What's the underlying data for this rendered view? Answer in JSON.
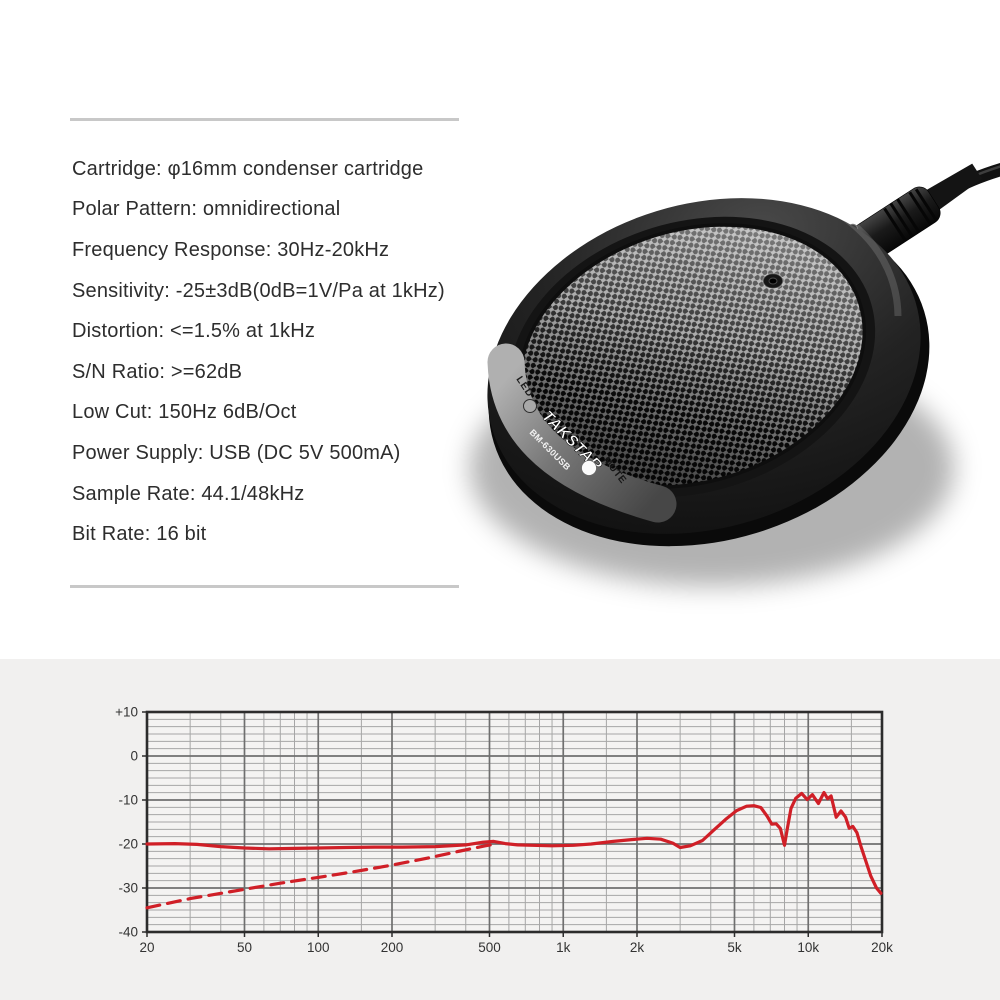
{
  "page": {
    "bg": "#ffffff",
    "section_bg": "#f1f0ef",
    "divider_color": "#c8c8c8"
  },
  "specs": {
    "items": [
      "Cartridge: φ16mm condenser cartridge",
      "Polar Pattern: omnidirectional",
      "Frequency Response: 30Hz-20kHz",
      "Sensitivity: -25±3dB(0dB=1V/Pa at 1kHz)",
      "Distortion: <=1.5% at 1kHz",
      "S/N Ratio: >=62dB",
      "Low Cut: 150Hz 6dB/Oct",
      "Power Supply: USB (DC 5V 500mA)",
      "Sample Rate: 44.1/48kHz",
      "Bit Rate: 16 bit"
    ]
  },
  "microphone": {
    "brand": "TAKSTAR",
    "model": "BM-630USB",
    "led_label": "LED",
    "mute_label": "MUTE"
  },
  "chart_data": {
    "type": "line",
    "title": "",
    "xlabel": "",
    "ylabel": "",
    "x_scale": "log",
    "xlim": [
      20,
      20000
    ],
    "ylim": [
      -40,
      10
    ],
    "grid": true,
    "legend": "none",
    "line_color": "#d01f27",
    "grid_minor_color": "#a6a6a6",
    "grid_major_color": "#6f6f6f",
    "border_color": "#2c2c2c",
    "x_major_ticks": [
      {
        "f": 20,
        "label": "20"
      },
      {
        "f": 50,
        "label": "50"
      },
      {
        "f": 100,
        "label": "100"
      },
      {
        "f": 200,
        "label": "200"
      },
      {
        "f": 500,
        "label": "500"
      },
      {
        "f": 1000,
        "label": "1k"
      },
      {
        "f": 2000,
        "label": "2k"
      },
      {
        "f": 5000,
        "label": "5k"
      },
      {
        "f": 10000,
        "label": "10k"
      },
      {
        "f": 20000,
        "label": "20k"
      }
    ],
    "x_minor_ticks": [
      30,
      40,
      60,
      70,
      80,
      90,
      150,
      300,
      400,
      600,
      700,
      800,
      900,
      1500,
      3000,
      4000,
      6000,
      7000,
      8000,
      9000,
      15000
    ],
    "y_major_ticks": [
      {
        "v": 10,
        "label": "+10"
      },
      {
        "v": 0,
        "label": "0"
      },
      {
        "v": -10,
        "label": "-10"
      },
      {
        "v": -20,
        "label": "-20"
      },
      {
        "v": -30,
        "label": "-30"
      },
      {
        "v": -40,
        "label": "-40"
      }
    ],
    "y_minor_per_band": 5,
    "series": [
      {
        "name": "frequency-response",
        "style": "solid",
        "points": [
          [
            20,
            -20
          ],
          [
            26,
            -19.9
          ],
          [
            32,
            -20.1
          ],
          [
            40,
            -20.6
          ],
          [
            50,
            -20.9
          ],
          [
            63,
            -21.1
          ],
          [
            80,
            -21
          ],
          [
            100,
            -20.9
          ],
          [
            130,
            -20.8
          ],
          [
            170,
            -20.7
          ],
          [
            220,
            -20.7
          ],
          [
            300,
            -20.6
          ],
          [
            400,
            -20.2
          ],
          [
            470,
            -19.6
          ],
          [
            520,
            -19.4
          ],
          [
            580,
            -19.9
          ],
          [
            650,
            -20.2
          ],
          [
            750,
            -20.3
          ],
          [
            900,
            -20.4
          ],
          [
            1100,
            -20.3
          ],
          [
            1300,
            -20
          ],
          [
            1600,
            -19.4
          ],
          [
            1900,
            -19
          ],
          [
            2200,
            -18.7
          ],
          [
            2500,
            -18.9
          ],
          [
            2800,
            -19.8
          ],
          [
            3000,
            -20.8
          ],
          [
            3300,
            -20.4
          ],
          [
            3700,
            -19.2
          ],
          [
            4100,
            -16.9
          ],
          [
            4600,
            -14.4
          ],
          [
            5100,
            -12.4
          ],
          [
            5600,
            -11.4
          ],
          [
            6000,
            -11.3
          ],
          [
            6400,
            -11.7
          ],
          [
            6800,
            -13.7
          ],
          [
            7100,
            -15.5
          ],
          [
            7400,
            -15.4
          ],
          [
            7700,
            -16.5
          ],
          [
            8000,
            -20.3
          ],
          [
            8200,
            -16.8
          ],
          [
            8500,
            -11.9
          ],
          [
            8900,
            -9.6
          ],
          [
            9400,
            -8.5
          ],
          [
            9900,
            -9.9
          ],
          [
            10400,
            -8.8
          ],
          [
            11000,
            -10.8
          ],
          [
            11600,
            -8.3
          ],
          [
            12000,
            -9.7
          ],
          [
            12400,
            -9.1
          ],
          [
            13000,
            -13.9
          ],
          [
            13600,
            -12.5
          ],
          [
            14200,
            -13.9
          ],
          [
            14700,
            -16.4
          ],
          [
            15200,
            -16
          ],
          [
            15800,
            -17.4
          ],
          [
            16400,
            -20.5
          ],
          [
            17200,
            -24
          ],
          [
            18000,
            -27.3
          ],
          [
            19000,
            -30
          ],
          [
            19800,
            -31.2
          ]
        ]
      },
      {
        "name": "low-cut-response",
        "style": "dashed",
        "points": [
          [
            20,
            -34.5
          ],
          [
            30,
            -32.4
          ],
          [
            50,
            -30.3
          ],
          [
            70,
            -28.9
          ],
          [
            100,
            -27.6
          ],
          [
            140,
            -26.3
          ],
          [
            200,
            -24.8
          ],
          [
            280,
            -23.2
          ],
          [
            380,
            -21.6
          ],
          [
            480,
            -20.4
          ],
          [
            520,
            -20.1
          ]
        ]
      }
    ]
  }
}
